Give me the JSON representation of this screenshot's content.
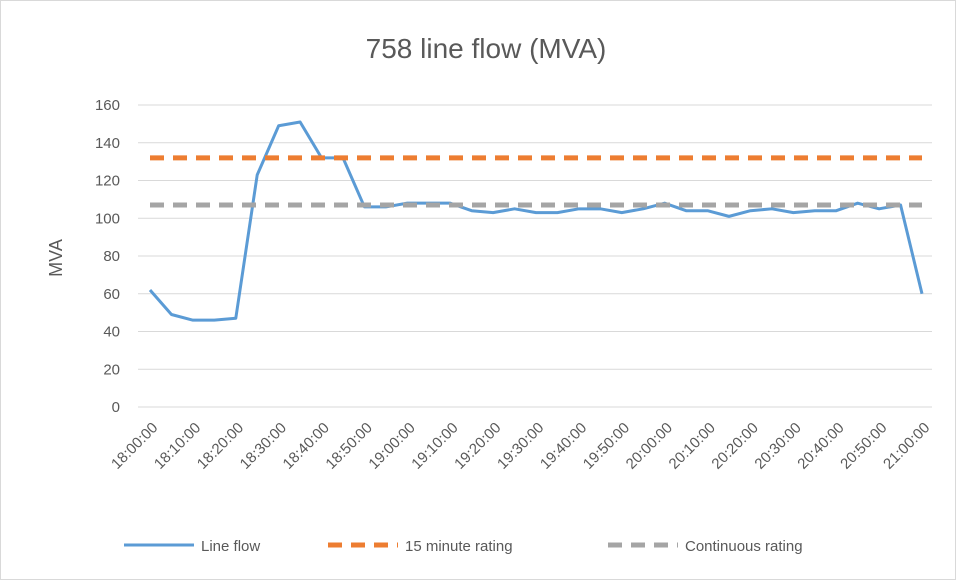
{
  "chart_data": {
    "type": "line",
    "title": "758 line flow (MVA)",
    "y_label": "MVA",
    "categories": [
      "18:00:00",
      null,
      "18:10:00",
      null,
      "18:20:00",
      null,
      "18:30:00",
      null,
      "18:40:00",
      null,
      "18:50:00",
      null,
      "19:00:00",
      null,
      "19:10:00",
      null,
      "19:20:00",
      null,
      "19:30:00",
      null,
      "19:40:00",
      null,
      "19:50:00",
      null,
      "20:00:00",
      null,
      "20:10:00",
      null,
      "20:20:00",
      null,
      "20:30:00",
      null,
      "20:40:00",
      null,
      "20:50:00",
      null,
      "21:00:00"
    ],
    "series": [
      {
        "name": "Line flow",
        "color": "#5b9bd5",
        "dashed": false,
        "values": [
          62,
          49,
          46,
          46,
          47,
          123,
          149,
          151,
          132,
          132,
          106,
          106,
          108,
          108,
          108,
          104,
          103,
          105,
          103,
          103,
          105,
          105,
          103,
          105,
          108,
          104,
          104,
          101,
          104,
          105,
          103,
          104,
          104,
          108,
          105,
          107,
          60
        ]
      },
      {
        "name": "15 minute rating",
        "color": "#ed7d31",
        "dashed": true,
        "values": [
          132,
          132,
          132,
          132,
          132,
          132,
          132,
          132,
          132,
          132,
          132,
          132,
          132,
          132,
          132,
          132,
          132,
          132,
          132,
          132,
          132,
          132,
          132,
          132,
          132,
          132,
          132,
          132,
          132,
          132,
          132,
          132,
          132,
          132,
          132,
          132,
          132
        ]
      },
      {
        "name": "Continuous rating",
        "color": "#a5a5a5",
        "dashed": true,
        "values": [
          107,
          107,
          107,
          107,
          107,
          107,
          107,
          107,
          107,
          107,
          107,
          107,
          107,
          107,
          107,
          107,
          107,
          107,
          107,
          107,
          107,
          107,
          107,
          107,
          107,
          107,
          107,
          107,
          107,
          107,
          107,
          107,
          107,
          107,
          107,
          107,
          107
        ]
      }
    ],
    "ylim": [
      0,
      160
    ],
    "yticks": [
      0,
      20,
      40,
      60,
      80,
      100,
      120,
      140,
      160
    ],
    "grid": true,
    "legend": "bottom"
  }
}
